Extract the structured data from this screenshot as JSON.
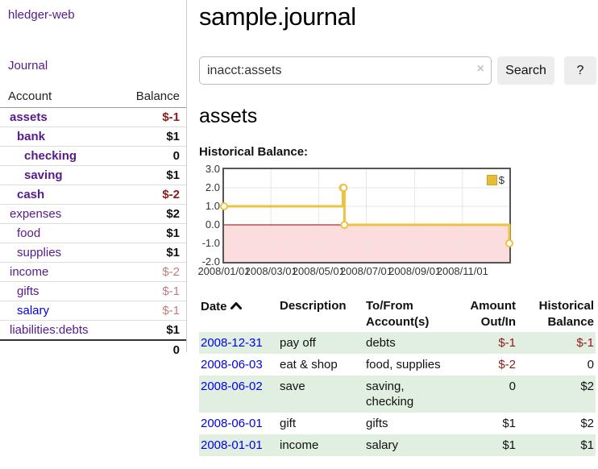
{
  "sidebar": {
    "brand": "hledger-web",
    "journal_link": "Journal",
    "accounts_header": {
      "account": "Account",
      "balance": "Balance"
    },
    "accounts": [
      {
        "name": "assets",
        "balance": "$-1",
        "depth": 0,
        "name_bold": true,
        "balance_bold": true,
        "neg": "dark",
        "link": "visited"
      },
      {
        "name": "bank",
        "balance": "$1",
        "depth": 1,
        "name_bold": true,
        "balance_bold": true,
        "neg": null,
        "link": "visited"
      },
      {
        "name": "checking",
        "balance": "0",
        "depth": 2,
        "name_bold": true,
        "balance_bold": true,
        "neg": null,
        "link": "visited"
      },
      {
        "name": "saving",
        "balance": "$1",
        "depth": 2,
        "name_bold": true,
        "balance_bold": true,
        "neg": null,
        "link": "visited"
      },
      {
        "name": "cash",
        "balance": "$-2",
        "depth": 1,
        "name_bold": true,
        "balance_bold": true,
        "neg": "dark",
        "link": "visited"
      },
      {
        "name": "expenses",
        "balance": "$2",
        "depth": 0,
        "name_bold": false,
        "balance_bold": true,
        "neg": null,
        "link": "visited"
      },
      {
        "name": "food",
        "balance": "$1",
        "depth": 1,
        "name_bold": false,
        "balance_bold": true,
        "neg": null,
        "link": "visited"
      },
      {
        "name": "supplies",
        "balance": "$1",
        "depth": 1,
        "name_bold": false,
        "balance_bold": true,
        "neg": null,
        "link": "visited"
      },
      {
        "name": "income",
        "balance": "$-2",
        "depth": 0,
        "name_bold": false,
        "balance_bold": false,
        "neg": "light",
        "link": "visited"
      },
      {
        "name": "gifts",
        "balance": "$-1",
        "depth": 1,
        "name_bold": false,
        "balance_bold": false,
        "neg": "light",
        "link": "visited"
      },
      {
        "name": "salary",
        "balance": "$-1",
        "depth": 1,
        "name_bold": false,
        "balance_bold": false,
        "neg": "light",
        "link": "unvisited"
      },
      {
        "name": "liabilities:debts",
        "balance": "$1",
        "depth": 0,
        "name_bold": false,
        "balance_bold": true,
        "neg": null,
        "link": "visited"
      }
    ],
    "total_balance": "0"
  },
  "header": {
    "title": "sample.journal"
  },
  "search": {
    "query": "inacct:assets",
    "clear_icon": "×",
    "button_label": "Search",
    "help_label": "?"
  },
  "account_page": {
    "title": "assets",
    "chart_label": "Historical Balance:"
  },
  "chart_data": {
    "type": "line",
    "title": "Historical Balance:",
    "step": true,
    "xlim": [
      "2008-01-01",
      "2008-12-31"
    ],
    "ylim": [
      -2,
      3
    ],
    "y_ticks": [
      "3.0",
      "2.0",
      "1.0",
      "0.0",
      "-1.0",
      "-2.0"
    ],
    "x_ticks": [
      "2008/01/01",
      "2008/03/01",
      "2008/05/01",
      "2008/07/01",
      "2008/09/01",
      "2008/11/01"
    ],
    "series": [
      {
        "name": "$",
        "color": "#edc240",
        "points": [
          {
            "date": "2008-01-01",
            "value": 1
          },
          {
            "date": "2008-06-01",
            "value": 2
          },
          {
            "date": "2008-06-02",
            "value": 2
          },
          {
            "date": "2008-06-03",
            "value": 0
          },
          {
            "date": "2008-12-31",
            "value": -1
          }
        ]
      }
    ],
    "legend_position": "top-right",
    "grid": true,
    "negative_region_fill": "#fcdcdc",
    "zero_line_color": "#8b0000",
    "grid_color": "#e6e6e6"
  },
  "transactions": {
    "sort": "ascending",
    "columns": [
      "Date",
      "Description",
      "To/From Account(s)",
      "Amount Out/In",
      "Historical Balance"
    ],
    "rows": [
      {
        "date": "2008-12-31",
        "description": "pay off",
        "accounts": "debts",
        "amount": "$-1",
        "balance": "$-1",
        "amount_neg": true,
        "balance_neg": true,
        "shaded": true
      },
      {
        "date": "2008-06-03",
        "description": "eat & shop",
        "accounts": "food, supplies",
        "amount": "$-2",
        "balance": "0",
        "amount_neg": true,
        "balance_neg": false,
        "shaded": false
      },
      {
        "date": "2008-06-02",
        "description": "save",
        "accounts": "saving, checking",
        "amount": "0",
        "balance": "$2",
        "amount_neg": false,
        "balance_neg": false,
        "shaded": true
      },
      {
        "date": "2008-06-01",
        "description": "gift",
        "accounts": "gifts",
        "amount": "$1",
        "balance": "$2",
        "amount_neg": false,
        "balance_neg": false,
        "shaded": false
      },
      {
        "date": "2008-01-01",
        "description": "income",
        "accounts": "salary",
        "amount": "$1",
        "balance": "$1",
        "amount_neg": false,
        "balance_neg": false,
        "shaded": true
      }
    ]
  }
}
